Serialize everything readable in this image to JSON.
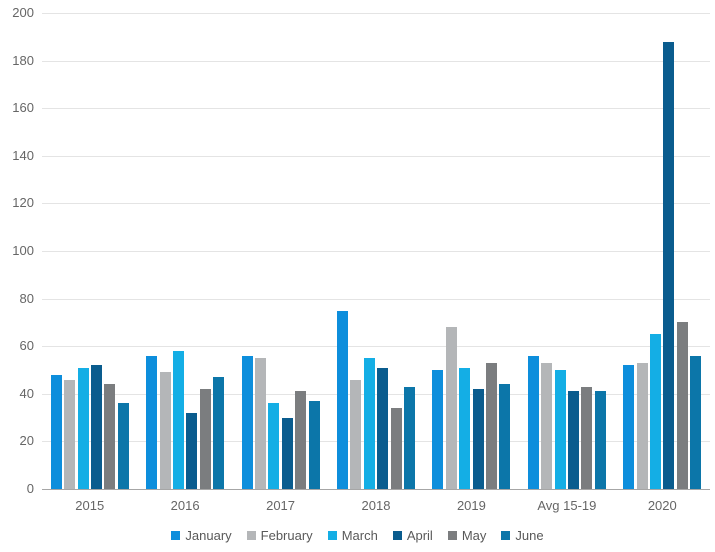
{
  "chart_data": {
    "type": "bar",
    "title": "",
    "xlabel": "",
    "ylabel": "",
    "categories": [
      "2015",
      "2016",
      "2017",
      "2018",
      "2019",
      "Avg 15-19",
      "2020"
    ],
    "series": [
      {
        "name": "January",
        "color": "#0D8EDC",
        "values": [
          48,
          56,
          56,
          75,
          50,
          56,
          52
        ]
      },
      {
        "name": "February",
        "color": "#B4B6B8",
        "values": [
          46,
          49,
          55,
          46,
          68,
          53,
          53
        ]
      },
      {
        "name": "March",
        "color": "#14AEE5",
        "values": [
          51,
          58,
          36,
          55,
          51,
          50,
          65
        ]
      },
      {
        "name": "April",
        "color": "#0A5C8E",
        "values": [
          52,
          32,
          30,
          51,
          42,
          41,
          188
        ]
      },
      {
        "name": "May",
        "color": "#7B7D7F",
        "values": [
          44,
          42,
          41,
          34,
          53,
          43,
          70
        ]
      },
      {
        "name": "June",
        "color": "#0C76A9",
        "values": [
          36,
          47,
          37,
          43,
          44,
          41,
          56
        ]
      }
    ],
    "ylim": [
      0,
      200
    ],
    "ytick_interval": 20,
    "yticks": [
      "0",
      "20",
      "40",
      "60",
      "80",
      "100",
      "120",
      "140",
      "160",
      "180",
      "200"
    ],
    "grid": true,
    "legend_position": "bottom"
  },
  "colors": {
    "gridline": "#E4E4E4",
    "axis_line": "#A6A6A6",
    "tick_text": "#666666",
    "xlabel_text": "#666666",
    "legend_text": "#595959"
  }
}
